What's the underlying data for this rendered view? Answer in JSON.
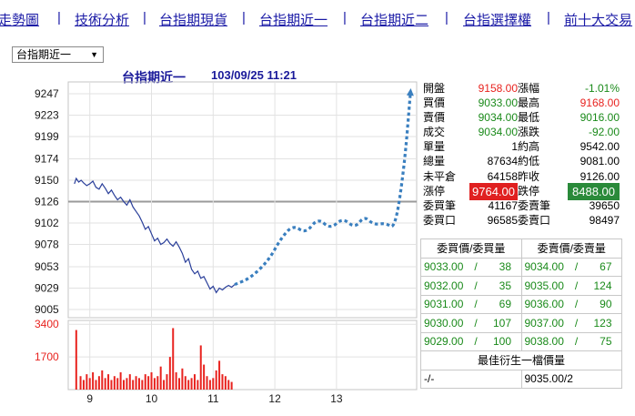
{
  "nav": {
    "items": [
      {
        "label": "走勢圖"
      },
      {
        "label": "技術分析"
      },
      {
        "label": "台指期現貨"
      },
      {
        "label": "台指期近一"
      },
      {
        "label": "台指期近二"
      },
      {
        "label": "台指選擇權"
      },
      {
        "label": "前十大交易"
      }
    ],
    "separator": "|"
  },
  "selector": {
    "value": "台指期近一",
    "caret": "▼"
  },
  "chart": {
    "title": "台指期近一",
    "datetime": "103/09/25 11:21"
  },
  "chart_data": {
    "type": "line",
    "price_axis": {
      "ticks": [
        9247,
        9223,
        9199,
        9174,
        9150,
        9126,
        9102,
        9078,
        9053,
        9029,
        9005
      ],
      "ylim": [
        9005,
        9247
      ],
      "reference": 9126
    },
    "x_ticks": [
      "9",
      "10",
      "11",
      "12",
      "13"
    ],
    "volume_axis": {
      "ticks": [
        3400,
        1700
      ]
    },
    "series": [
      {
        "name": "price",
        "x": [
          8.75,
          8.78,
          8.82,
          8.86,
          8.9,
          8.95,
          9.0,
          9.05,
          9.1,
          9.15,
          9.2,
          9.25,
          9.3,
          9.35,
          9.4,
          9.45,
          9.5,
          9.55,
          9.6,
          9.65,
          9.7,
          9.75,
          9.8,
          9.85,
          9.9,
          9.95,
          10.0,
          10.05,
          10.1,
          10.15,
          10.2,
          10.25,
          10.3,
          10.35,
          10.4,
          10.45,
          10.5,
          10.55,
          10.6,
          10.65,
          10.7,
          10.75,
          10.8,
          10.85,
          10.9,
          10.95,
          11.0,
          11.05,
          11.1,
          11.15,
          11.2,
          11.25,
          11.3,
          11.35
        ],
        "values": [
          9146,
          9152,
          9148,
          9150,
          9147,
          9144,
          9146,
          9149,
          9142,
          9140,
          9146,
          9141,
          9135,
          9139,
          9133,
          9128,
          9131,
          9126,
          9122,
          9128,
          9120,
          9115,
          9110,
          9103,
          9095,
          9098,
          9090,
          9082,
          9085,
          9078,
          9080,
          9084,
          9079,
          9076,
          9081,
          9075,
          9068,
          9058,
          9062,
          9050,
          9045,
          9048,
          9040,
          9042,
          9035,
          9028,
          9031,
          9024,
          9029,
          9027,
          9030,
          9032,
          9030,
          9033
        ]
      },
      {
        "name": "forecast",
        "x": [
          11.35,
          11.6,
          11.9,
          12.1,
          12.3,
          12.5,
          12.7,
          12.9,
          13.1,
          13.3,
          13.45,
          13.6,
          13.8,
          13.95,
          14.1,
          14.2
        ],
        "values": [
          9033,
          9040,
          9060,
          9085,
          9100,
          9090,
          9108,
          9095,
          9108,
          9096,
          9110,
          9100,
          9102,
          9095,
          9165,
          9249
        ]
      },
      {
        "name": "volume",
        "x": [
          8.78,
          8.85,
          8.9,
          8.95,
          9.0,
          9.05,
          9.1,
          9.15,
          9.2,
          9.25,
          9.3,
          9.35,
          9.4,
          9.45,
          9.5,
          9.55,
          9.6,
          9.65,
          9.7,
          9.75,
          9.8,
          9.85,
          9.9,
          9.95,
          10.0,
          10.05,
          10.1,
          10.15,
          10.2,
          10.25,
          10.3,
          10.35,
          10.4,
          10.45,
          10.5,
          10.55,
          10.6,
          10.65,
          10.7,
          10.75,
          10.8,
          10.85,
          10.9,
          10.95,
          11.0,
          11.05,
          11.1,
          11.15,
          11.2,
          11.25,
          11.3
        ],
        "values": [
          3100,
          700,
          500,
          800,
          600,
          900,
          500,
          700,
          1000,
          600,
          800,
          500,
          700,
          600,
          900,
          500,
          600,
          800,
          500,
          700,
          600,
          500,
          800,
          700,
          900,
          600,
          700,
          1200,
          500,
          800,
          1700,
          3200,
          900,
          600,
          1100,
          700,
          500,
          600,
          800,
          500,
          2300,
          1300,
          700,
          500,
          600,
          1000,
          1500,
          800,
          700,
          500,
          400
        ]
      }
    ]
  },
  "quote": {
    "rows": [
      {
        "l1": "開盤",
        "v1": "9158.00",
        "l2": "漲幅",
        "v2": "-1.01%"
      },
      {
        "l1": "買價",
        "v1": "9033.00",
        "l2": "最高",
        "v2": "9168.00"
      },
      {
        "l1": "賣價",
        "v1": "9034.00",
        "l2": "最低",
        "v2": "9016.00"
      },
      {
        "l1": "成交",
        "v1": "9034.00",
        "l2": "漲跌",
        "v2": "-92.00"
      },
      {
        "l1": "單量",
        "v1": "1",
        "l2": "約高",
        "v2": "9542.00"
      },
      {
        "l1": "總量",
        "v1": "87634",
        "l2": "約低",
        "v2": "9081.00"
      },
      {
        "l1": "未平倉",
        "v1": "64158",
        "l2": "昨收",
        "v2": "9126.00"
      },
      {
        "l1": "漲停",
        "v1": "9764.00",
        "l2": "跌停",
        "v2": "8488.00"
      },
      {
        "l1": "委買筆",
        "v1": "41167",
        "l2": "委賣筆",
        "v2": "39650"
      },
      {
        "l1": "委買口",
        "v1": "96585",
        "l2": "委賣口",
        "v2": "98497"
      }
    ]
  },
  "book": {
    "bid_header": "委買價/委買量",
    "ask_header": "委賣價/委賣量",
    "slash": "/",
    "bids": [
      {
        "price": "9033.00",
        "qty": "38"
      },
      {
        "price": "9032.00",
        "qty": "35"
      },
      {
        "price": "9031.00",
        "qty": "69"
      },
      {
        "price": "9030.00",
        "qty": "107"
      },
      {
        "price": "9029.00",
        "qty": "100"
      }
    ],
    "asks": [
      {
        "price": "9034.00",
        "qty": "67"
      },
      {
        "price": "9035.00",
        "qty": "124"
      },
      {
        "price": "9036.00",
        "qty": "90"
      },
      {
        "price": "9037.00",
        "qty": "123"
      },
      {
        "price": "9038.00",
        "qty": "75"
      }
    ],
    "derivative_header": "最佳衍生一檔價量",
    "derivative_bid": {
      "price": "-",
      "qty": "-"
    },
    "derivative_ask": {
      "price": "9035.00",
      "qty": "2"
    }
  },
  "colors": {
    "link": "#1a1aa6",
    "up": "#e8231f",
    "down": "#1a8a1a",
    "price_line": "#2a3f9a",
    "forecast": "#3a7fbf",
    "reference": "#9a9a9a"
  }
}
